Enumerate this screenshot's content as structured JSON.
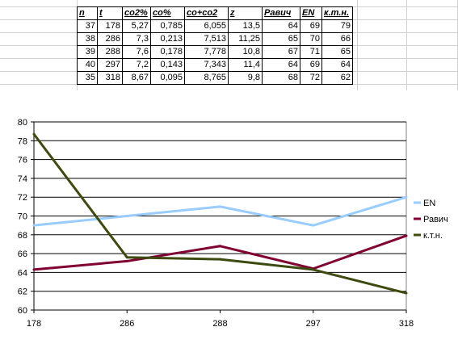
{
  "table": {
    "headers": [
      "n",
      "t",
      "co2%",
      "co%",
      "co+co2",
      "z",
      "Равич",
      "EN",
      "к.т.н."
    ],
    "rows": [
      [
        "37",
        "178",
        "5,27",
        "0,785",
        "6,055",
        "13,5",
        "64",
        "69",
        "79"
      ],
      [
        "38",
        "286",
        "7,3",
        "0,213",
        "7,513",
        "11,25",
        "65",
        "70",
        "66"
      ],
      [
        "39",
        "288",
        "7,6",
        "0,178",
        "7,778",
        "10,8",
        "67",
        "71",
        "65"
      ],
      [
        "40",
        "297",
        "7,2",
        "0,143",
        "7,343",
        "11,4",
        "64",
        "69",
        "64"
      ],
      [
        "35",
        "318",
        "8,67",
        "0,095",
        "8,765",
        "9,8",
        "68",
        "72",
        "62"
      ]
    ]
  },
  "chart_data": {
    "type": "line",
    "categories": [
      "178",
      "286",
      "288",
      "297",
      "318"
    ],
    "ylim": [
      60,
      80
    ],
    "yticks": [
      "60",
      "62",
      "64",
      "66",
      "68",
      "70",
      "72",
      "74",
      "76",
      "78",
      "80"
    ],
    "grid": true,
    "legend_position": "right",
    "series": [
      {
        "name": "EN",
        "color": "#99ccff",
        "values": [
          69,
          70,
          71,
          69,
          72
        ]
      },
      {
        "name": "Равич",
        "color": "#800033",
        "values": [
          64.3,
          65.2,
          66.8,
          64.4,
          67.9
        ]
      },
      {
        "name": "к.т.н.",
        "color": "#3d4a10",
        "values": [
          78.7,
          65.6,
          65.4,
          64.3,
          61.8
        ]
      }
    ]
  }
}
